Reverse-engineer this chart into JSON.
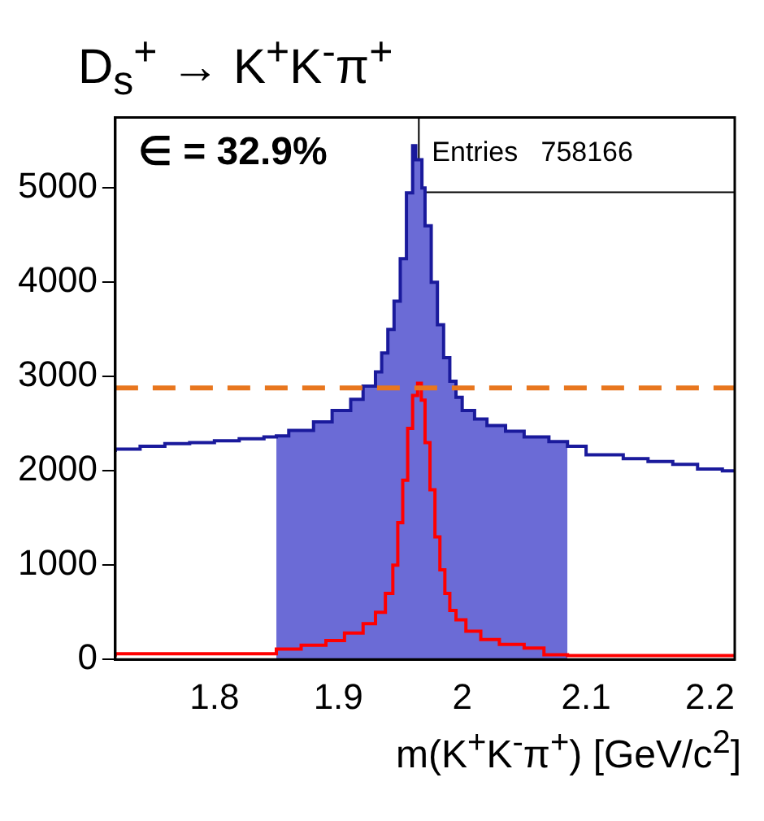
{
  "chart_data": {
    "type": "step",
    "title": "D$_{s}$$^{+}$ → K$^{+}$K$^{-}$π$^{+}$",
    "xlabel": "m(K$^{+}$K$^{-}$π$^{+}$) [GeV/c$^{2}$]",
    "annotations": [
      "∈ = 32.9%",
      "Entries   758166"
    ],
    "series": [
      {
        "color": "#1a1a9c",
        "x": [
          1.72,
          1.74,
          1.76,
          1.78,
          1.8,
          1.82,
          1.84,
          1.85,
          1.86,
          1.88,
          1.895,
          1.91,
          1.92,
          1.93,
          1.935,
          1.94,
          1.945,
          1.95,
          1.955,
          1.96,
          1.9625,
          1.9675,
          1.97,
          1.975,
          1.98,
          1.985,
          1.99,
          1.995,
          2.0,
          2.01,
          2.02,
          2.035,
          2.05,
          2.07,
          2.085,
          2.1,
          2.13,
          2.15,
          2.17,
          2.19,
          2.21,
          2.22
        ],
        "values": [
          2200,
          2230,
          2260,
          2290,
          2300,
          2320,
          2340,
          2360,
          2370,
          2430,
          2520,
          2640,
          2760,
          2900,
          3050,
          3250,
          3500,
          3800,
          4250,
          4950,
          5450,
          5300,
          5000,
          4600,
          4000,
          3550,
          3200,
          2950,
          2780,
          2640,
          2550,
          2480,
          2420,
          2360,
          2310,
          2260,
          2170,
          2130,
          2100,
          2070,
          2020,
          2000
        ]
      },
      {
        "type": "area",
        "color": "#6b6bd6",
        "x": [
          1.85,
          1.86,
          1.88,
          1.895,
          1.91,
          1.92,
          1.93,
          1.935,
          1.94,
          1.945,
          1.95,
          1.955,
          1.96,
          1.9625,
          1.9675,
          1.97,
          1.975,
          1.98,
          1.985,
          1.99,
          1.995,
          2.0,
          2.01,
          2.02,
          2.035,
          2.05,
          2.07,
          2.085
        ],
        "values": [
          2360,
          2370,
          2430,
          2520,
          2640,
          2760,
          2900,
          3050,
          3250,
          3500,
          3800,
          4250,
          4950,
          5450,
          5300,
          5000,
          4600,
          4000,
          3550,
          3200,
          2950,
          2780,
          2640,
          2550,
          2480,
          2420,
          2360,
          2310
        ]
      },
      {
        "color": "#ff0000",
        "x": [
          1.72,
          1.85,
          1.87,
          1.89,
          1.905,
          1.92,
          1.93,
          1.938,
          1.944,
          1.948,
          1.952,
          1.956,
          1.96,
          1.964,
          1.967,
          1.97,
          1.974,
          1.978,
          1.982,
          1.986,
          1.99,
          1.995,
          2.003,
          2.015,
          2.03,
          2.05,
          2.066,
          2.085,
          2.22
        ],
        "values": [
          30,
          60,
          110,
          150,
          200,
          280,
          380,
          500,
          700,
          1000,
          1450,
          1900,
          2450,
          2800,
          2930,
          2750,
          2300,
          1800,
          1300,
          950,
          700,
          520,
          420,
          300,
          210,
          160,
          120,
          50,
          40
        ]
      }
    ],
    "ref_lines": [
      {
        "axis": "y",
        "value": 2880,
        "color": "#e8761e",
        "line_style": "dashed"
      }
    ],
    "xlim": [
      1.72,
      2.22
    ],
    "xticks": [
      1.8,
      1.9,
      2,
      2.1,
      2.2
    ],
    "ylim": [
      0,
      5750
    ],
    "yticks": [
      0,
      1000,
      2000,
      3000,
      4000,
      5000
    ],
    "grid": false,
    "legend": false
  }
}
